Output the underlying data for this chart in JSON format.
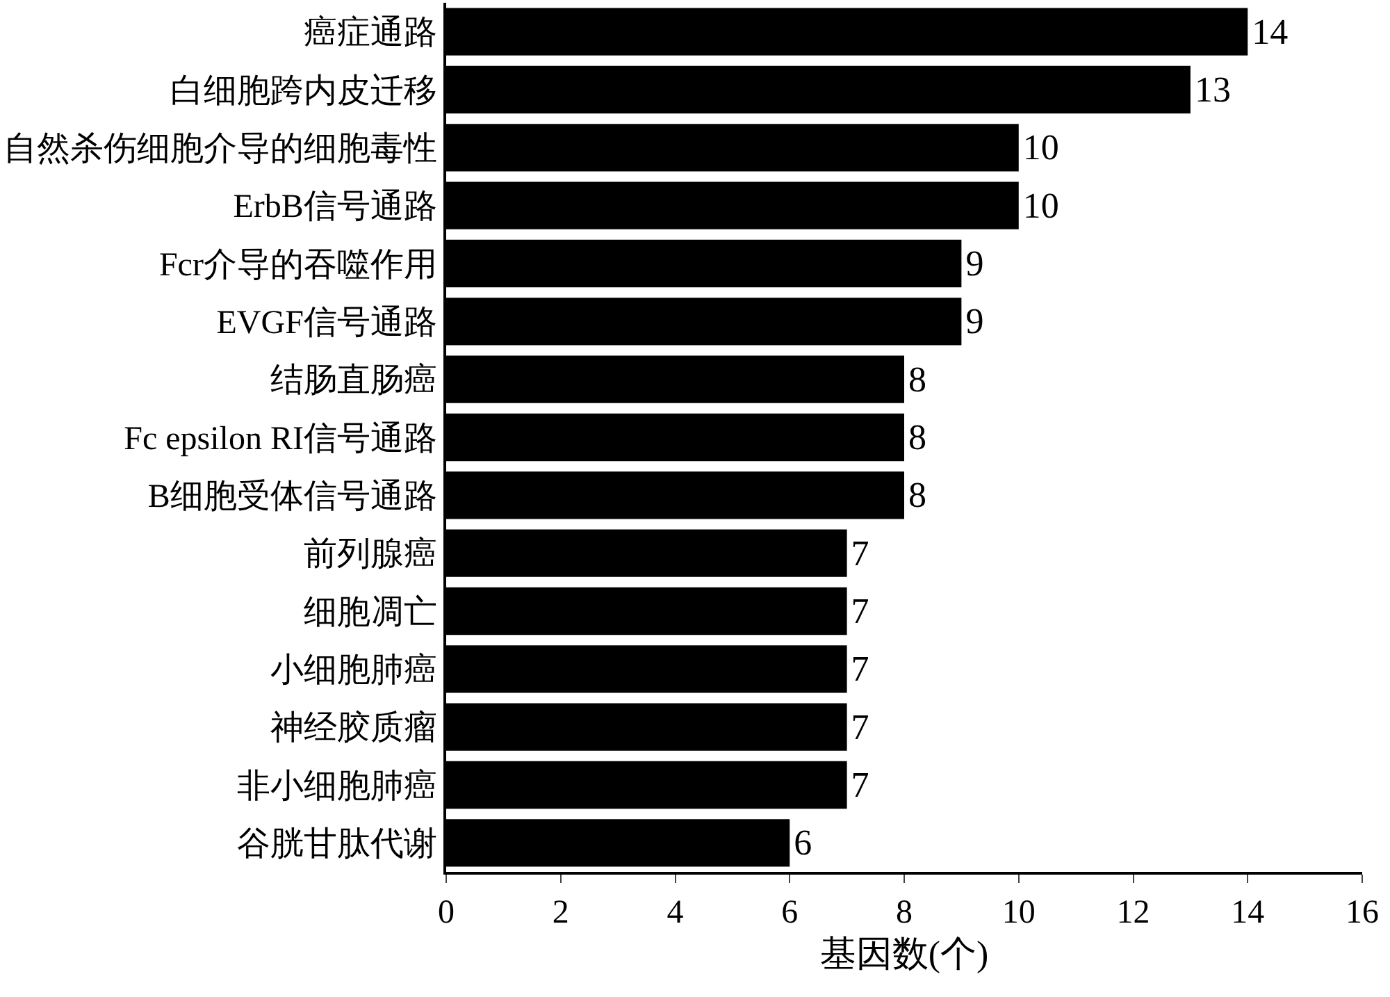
{
  "chart_data": {
    "type": "bar",
    "orientation": "horizontal",
    "xlabel": "基因数(个)",
    "categories": [
      "癌症通路",
      "白细胞跨内皮迁移",
      "自然杀伤细胞介导的细胞毒性",
      "ErbB信号通路",
      "Fcr介导的吞噬作用",
      "EVGF信号通路",
      "结肠直肠癌",
      "Fc epsilon RI信号通路",
      "B细胞受体信号通路",
      "前列腺癌",
      "细胞凋亡",
      "小细胞肺癌",
      "神经胶质瘤",
      "非小细胞肺癌",
      "谷胱甘肽代谢"
    ],
    "values": [
      14,
      13,
      10,
      10,
      9,
      9,
      8,
      8,
      8,
      7,
      7,
      7,
      7,
      7,
      6
    ],
    "color": "#000000",
    "data_labels": true,
    "xlim": [
      0,
      16
    ],
    "xticks": [
      0,
      2,
      4,
      6,
      8,
      10,
      12,
      14,
      16
    ]
  }
}
